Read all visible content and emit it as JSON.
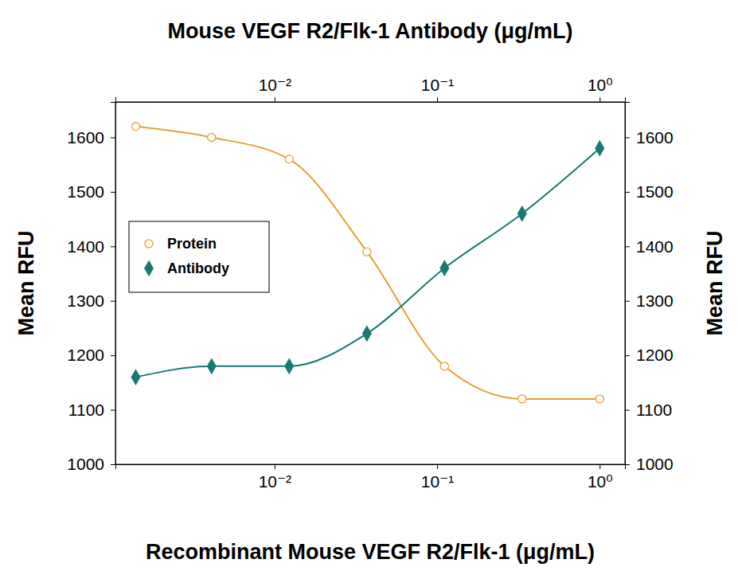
{
  "chart_data": {
    "type": "scatter",
    "title": "Mouse VEGF R2/Flk-1 Antibody (μg/mL)",
    "x_label": "Recombinant Mouse VEGF R2/Flk-1 (μg/mL)",
    "y_label": "Mean RFU",
    "y2_label": "Mean RFU",
    "log": "x",
    "legend": "left",
    "xlim": [
      0.00105,
      1.43
    ],
    "xticks": [
      {
        "value": 0.01,
        "label": "10⁻²"
      },
      {
        "value": 0.1,
        "label": "10⁻¹"
      },
      {
        "value": 1,
        "label": "10⁰"
      }
    ],
    "x2lim": [
      0.00105,
      1.43
    ],
    "x2ticks": [
      {
        "value": 0.01,
        "label": "10⁻²"
      },
      {
        "value": 0.1,
        "label": "10⁻¹"
      },
      {
        "value": 1,
        "label": "10⁰"
      }
    ],
    "ylim": [
      1000,
      1665
    ],
    "yticks": [
      1000,
      1100,
      1200,
      1300,
      1400,
      1500,
      1600
    ],
    "y2lim": [
      1000,
      1665
    ],
    "y2ticks": [
      1000,
      1100,
      1200,
      1300,
      1400,
      1500,
      1600
    ],
    "series": [
      {
        "name": "Protein",
        "color": "#e8a033",
        "marker": "open-circle",
        "line_style": "solid",
        "x": [
          0.0014,
          0.0041,
          0.0123,
          0.037,
          0.111,
          0.333,
          1
        ],
        "values": [
          1620,
          1600,
          1560,
          1390,
          1180,
          1120,
          1120
        ]
      },
      {
        "name": "Antibody",
        "color": "#167a72",
        "marker": "diamond",
        "line_style": "solid",
        "axis": "x2 y2",
        "x": [
          0.0014,
          0.0041,
          0.0123,
          0.037,
          0.111,
          0.333,
          1
        ],
        "values": [
          1160,
          1180,
          1180,
          1240,
          1360,
          1460,
          1580
        ]
      }
    ]
  }
}
